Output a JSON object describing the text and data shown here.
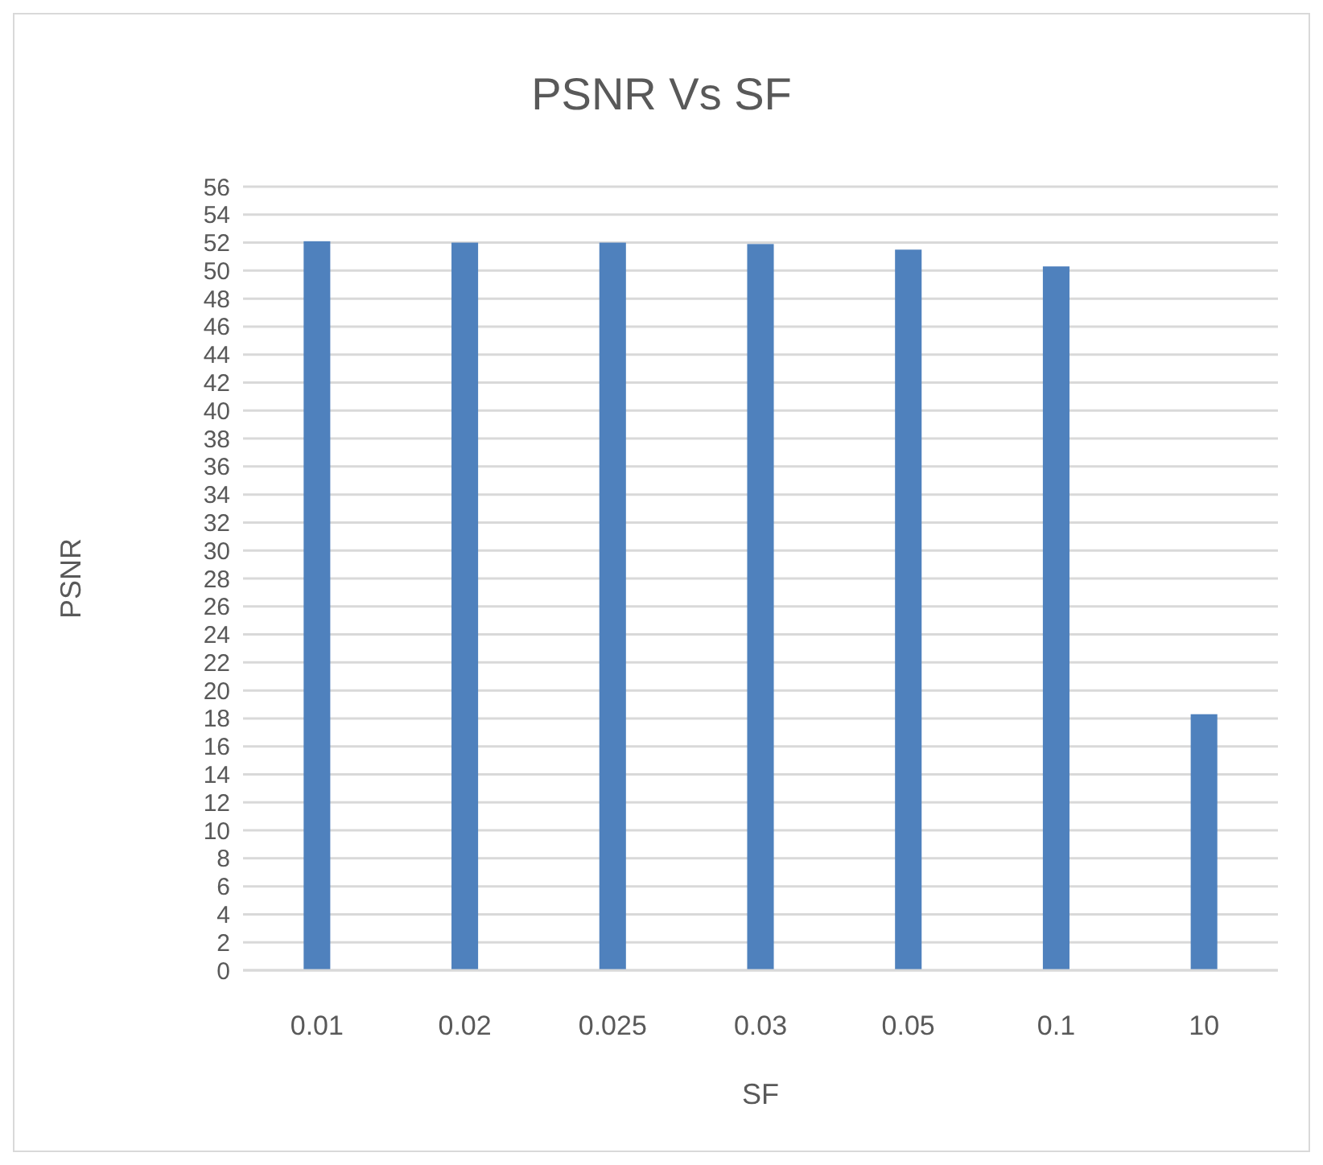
{
  "chart_data": {
    "type": "bar",
    "title": "PSNR Vs SF",
    "xlabel": "SF",
    "ylabel": "PSNR",
    "categories": [
      "0.01",
      "0.02",
      "0.025",
      "0.03",
      "0.05",
      "0.1",
      "10"
    ],
    "values": [
      52.1,
      52,
      52,
      51.9,
      51.5,
      50.3,
      18.3
    ],
    "color": "#4f81bd",
    "ylim": [
      0,
      56
    ],
    "yticks": [
      0,
      2,
      4,
      6,
      8,
      10,
      12,
      14,
      16,
      18,
      20,
      22,
      24,
      26,
      28,
      30,
      32,
      34,
      36,
      38,
      40,
      42,
      44,
      46,
      48,
      50,
      52,
      54,
      56
    ],
    "grid": "y"
  }
}
